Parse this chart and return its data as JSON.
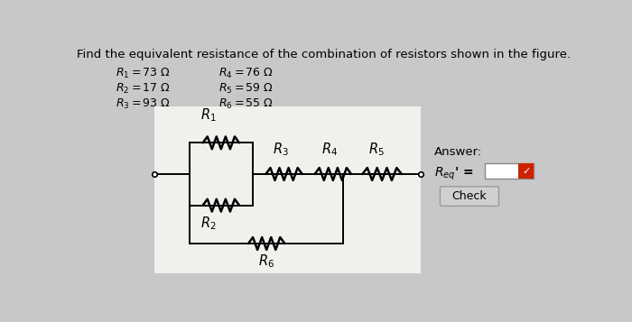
{
  "title": "Find the equivalent resistance of the combination of resistors shown in the figure.",
  "bg_color": "#c8c8c8",
  "circuit_bg": "#f2f0ed",
  "answer_section": {
    "label": "Answer:",
    "req_label": "R",
    "req_sub": "eq",
    "check_text": "Check",
    "input_bg": "#ffffff",
    "check_bg": "#d0d0d0",
    "check_mark_bg": "#cc2200"
  },
  "resistor_list_left": [
    "R_1 = 73 \\Omega",
    "R_2 = 17 \\Omega",
    "R_3 = 93 \\Omega"
  ],
  "resistor_list_right": [
    "R_4 = 76 \\Omega",
    "R_5 = 59 \\Omega",
    "R_6 = 55 \\Omega"
  ],
  "wire_color": "#000000",
  "lw_wire": 1.4,
  "lw_resistor": 1.8
}
